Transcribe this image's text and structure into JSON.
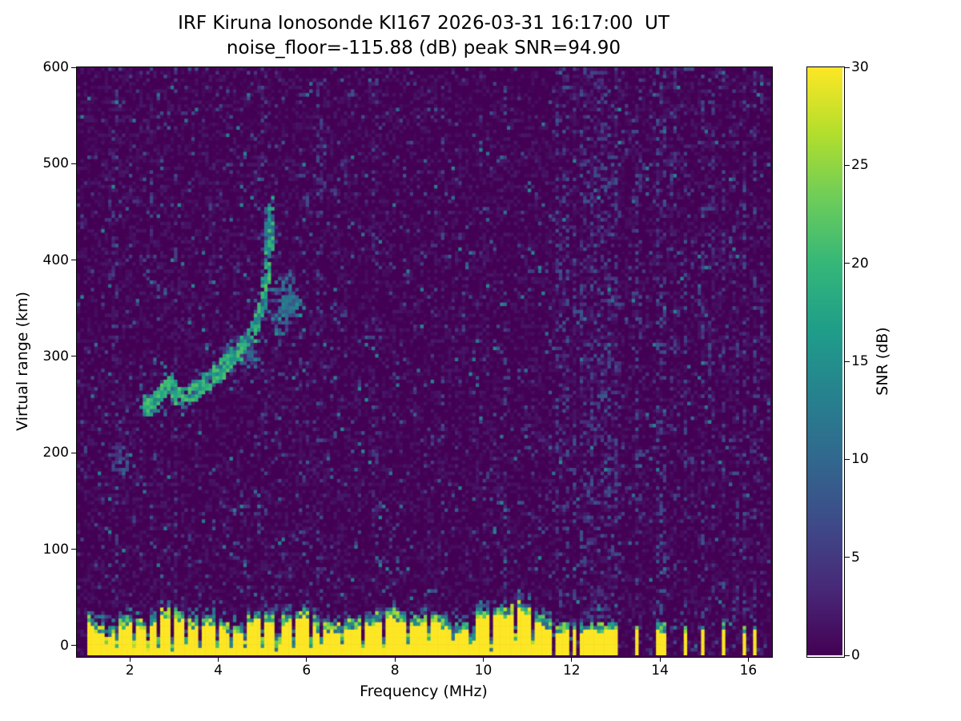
{
  "chart_data": {
    "type": "heatmap",
    "title": "IRF Kiruna Ionosonde KI167 2026-03-31 16:17:00  UT",
    "subtitle": "noise_floor=-115.88 (dB) peak SNR=94.90",
    "station": "IRF Kiruna Ionosonde KI167",
    "timestamp_ut": "2026-03-31 16:17:00 UT",
    "noise_floor_db": -115.88,
    "peak_snr_db": 94.9,
    "xlabel": "Frequency (MHz)",
    "ylabel": "Virtual range (km)",
    "x_range": [
      0.8,
      16.5
    ],
    "y_range": [
      -10,
      600
    ],
    "x_ticks": [
      2,
      4,
      6,
      8,
      10,
      12,
      14,
      16
    ],
    "y_ticks": [
      0,
      100,
      200,
      300,
      400,
      500,
      600
    ],
    "colorbar": {
      "label": "SNR (dB)",
      "min": 0,
      "max": 30,
      "ticks": [
        0,
        5,
        10,
        15,
        20,
        25,
        30
      ],
      "colormap": "viridis"
    },
    "features": {
      "noise_seed": 1337,
      "echo_trace": [
        [
          2.32,
          250
        ],
        [
          2.42,
          247
        ],
        [
          2.52,
          249
        ],
        [
          2.62,
          254
        ],
        [
          2.72,
          261
        ],
        [
          2.82,
          269
        ],
        [
          2.9,
          273
        ],
        [
          2.98,
          266
        ],
        [
          3.06,
          258
        ],
        [
          3.16,
          257
        ],
        [
          3.28,
          260
        ],
        [
          3.4,
          263
        ],
        [
          3.52,
          266
        ],
        [
          3.64,
          270
        ],
        [
          3.76,
          274
        ],
        [
          3.88,
          279
        ],
        [
          4.0,
          284
        ],
        [
          4.12,
          289
        ],
        [
          4.24,
          294
        ],
        [
          4.36,
          300
        ],
        [
          4.48,
          306
        ],
        [
          4.6,
          313
        ],
        [
          4.72,
          321
        ],
        [
          4.84,
          331
        ],
        [
          4.94,
          343
        ],
        [
          5.02,
          357
        ],
        [
          5.08,
          374
        ],
        [
          5.13,
          394
        ],
        [
          5.17,
          416
        ],
        [
          5.2,
          438
        ],
        [
          5.22,
          458
        ]
      ],
      "echo_branch": [
        [
          5.28,
          332
        ],
        [
          5.38,
          338
        ],
        [
          5.48,
          345
        ],
        [
          5.58,
          352
        ],
        [
          5.7,
          357
        ],
        [
          5.82,
          356
        ],
        [
          5.92,
          348
        ]
      ],
      "diffuse_clouds": [
        {
          "f": 5.5,
          "k": 358,
          "sf": 0.3,
          "sk": 30,
          "n": 260,
          "v": 11
        },
        {
          "f": 5.15,
          "k": 420,
          "sf": 0.1,
          "sk": 35,
          "n": 120,
          "v": 13
        },
        {
          "f": 1.85,
          "k": 192,
          "sf": 0.22,
          "sk": 16,
          "n": 70,
          "v": 8
        },
        {
          "f": 4.6,
          "k": 300,
          "sf": 0.5,
          "sk": 25,
          "n": 150,
          "v": 9
        }
      ],
      "ground_clutter": {
        "freq_min": 1.0,
        "freq_max": 11.55,
        "top_km_base": 27,
        "base_km": -10
      },
      "clutter_notches_mhz": [
        1.45,
        1.72,
        2.08,
        2.38,
        2.62,
        2.95,
        3.28,
        3.62,
        3.95,
        4.3,
        4.62,
        5.0,
        5.35,
        5.72,
        6.1,
        6.35,
        6.8,
        7.3,
        7.75,
        8.3,
        8.8,
        9.3,
        9.75,
        10.2,
        10.7,
        11.1
      ],
      "rfi_bars_mhz": [
        11.68,
        11.8,
        11.93,
        12.06,
        12.2,
        12.34,
        12.5,
        12.66,
        12.82,
        12.98,
        13.5,
        13.98,
        14.12,
        14.6,
        14.95,
        15.45,
        15.9,
        16.15
      ],
      "faint_stripes_mhz": [
        1.65,
        2.5,
        3.05,
        5.05,
        6.3,
        7.55,
        9.1,
        10.5,
        12.45,
        13.05,
        13.55,
        14.3,
        15.15,
        15.7,
        16.3
      ]
    }
  }
}
